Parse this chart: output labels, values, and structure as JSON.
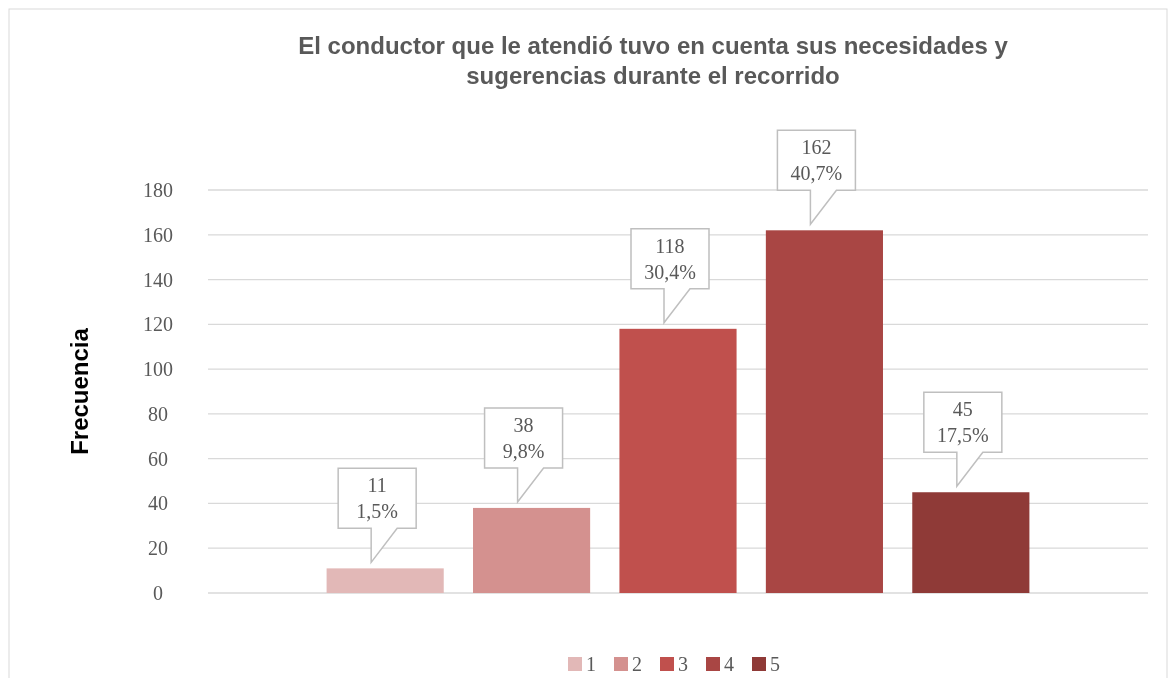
{
  "chart_data": {
    "type": "bar",
    "title": "El conductor que le atendió tuvo en cuenta sus necesidades y\nsugerencias durante el recorrido",
    "ylabel": "Frecuencia",
    "categories": [
      null
    ],
    "series": [
      {
        "name": "1",
        "color": "#e2b8b7",
        "values": [
          11
        ],
        "value_labels": [
          "11\n1,5%"
        ]
      },
      {
        "name": "2",
        "color": "#d4918f",
        "values": [
          38
        ],
        "value_labels": [
          "38\n9,8%"
        ]
      },
      {
        "name": "3",
        "color": "#c0504d",
        "values": [
          118
        ],
        "value_labels": [
          "118\n30,4%"
        ]
      },
      {
        "name": "4",
        "color": "#a94644",
        "values": [
          162
        ],
        "value_labels": [
          "162\n40,7%"
        ]
      },
      {
        "name": "5",
        "color": "#8f3a37",
        "values": [
          45
        ],
        "value_labels": [
          "45\n17,5%"
        ]
      }
    ],
    "ylim": [
      0,
      180
    ],
    "yticks": [
      0,
      20,
      40,
      60,
      80,
      100,
      120,
      140,
      160,
      180
    ],
    "grid": "y",
    "legend": "bottom"
  }
}
